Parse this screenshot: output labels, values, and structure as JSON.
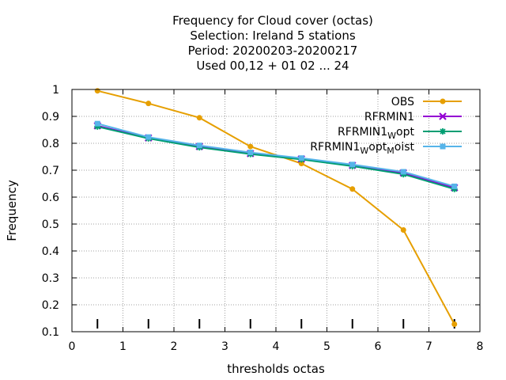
{
  "chart_data": {
    "type": "line",
    "title_lines": [
      "Frequency  for Cloud cover (octas)",
      "Selection: Ireland      5 stations",
      "Period: 20200203-20200217",
      "Used  00,12  + 01 02 ... 24"
    ],
    "xlabel": "thresholds octas",
    "ylabel": "Frequency",
    "xlim": [
      0,
      8
    ],
    "ylim": [
      0.1,
      1.0
    ],
    "xticks": [
      0,
      1,
      2,
      3,
      4,
      5,
      6,
      7,
      8
    ],
    "yticks": [
      0.1,
      0.2,
      0.3,
      0.4,
      0.5,
      0.6,
      0.7,
      0.8,
      0.9,
      1.0
    ],
    "ytick_labels": [
      "0.1",
      "0.2",
      "0.3",
      "0.4",
      "0.5",
      "0.6",
      "0.7",
      "0.8",
      "0.9",
      "1"
    ],
    "grid": true,
    "legend_position": "top-right",
    "observation_marks_x": [
      0.5,
      1.5,
      2.5,
      3.5,
      4.5,
      5.5,
      6.5,
      7.5
    ],
    "x": [
      0.5,
      1.5,
      2.5,
      3.5,
      4.5,
      5.5,
      6.5,
      7.5
    ],
    "series": [
      {
        "name": "OBS",
        "legend": [
          "OBS"
        ],
        "color": "#e69f00",
        "marker": "circle",
        "values": [
          0.995,
          0.948,
          0.895,
          0.788,
          0.725,
          0.63,
          0.478,
          0.128
        ]
      },
      {
        "name": "RFRMIN1",
        "legend": [
          "RFRMIN1"
        ],
        "color": "#9400d3",
        "marker": "cross",
        "values": [
          0.865,
          0.82,
          0.788,
          0.762,
          0.742,
          0.718,
          0.69,
          0.635
        ]
      },
      {
        "name": "RFRMIN1_W opt",
        "legend": [
          "RFRMIN1",
          "W",
          "opt"
        ],
        "color": "#009e73",
        "marker": "star",
        "values": [
          0.862,
          0.818,
          0.785,
          0.76,
          0.74,
          0.715,
          0.685,
          0.63
        ]
      },
      {
        "name": "RFRMIN1_W opt_M oist",
        "legend": [
          "RFRMIN1",
          "W",
          "opt",
          "M",
          "oist"
        ],
        "color": "#56b4e9",
        "marker": "square",
        "values": [
          0.873,
          0.823,
          0.792,
          0.766,
          0.745,
          0.721,
          0.694,
          0.64
        ]
      }
    ]
  }
}
